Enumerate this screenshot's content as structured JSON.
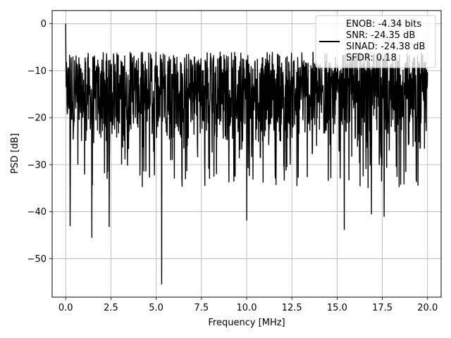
{
  "chart_data": {
    "type": "line",
    "xlabel": "Frequency [MHz]",
    "ylabel": "PSD [dB]",
    "xlim": [
      -0.75,
      20.75
    ],
    "ylim": [
      -58.2,
      2.8
    ],
    "xticks": [
      0.0,
      2.5,
      5.0,
      7.5,
      10.0,
      12.5,
      15.0,
      17.5,
      20.0
    ],
    "xtick_labels": [
      "0.0",
      "2.5",
      "5.0",
      "7.5",
      "10.0",
      "12.5",
      "15.0",
      "17.5",
      "20.0"
    ],
    "yticks": [
      0,
      -10,
      -20,
      -30,
      -40,
      -50
    ],
    "ytick_labels": [
      "0",
      "−10",
      "−20",
      "−30",
      "−40",
      "−50"
    ],
    "grid": true,
    "legend_position": "top-right",
    "series": [
      {
        "color": "#000000",
        "x_range": [
          0.0,
          20.0
        ],
        "typical_band_db": [
          -25,
          -6
        ],
        "peak": {
          "x": 0.0,
          "y": 0.0
        },
        "notable_dips": [
          {
            "x": 0.25,
            "y": -43.0
          },
          {
            "x": 1.45,
            "y": -45.5
          },
          {
            "x": 2.4,
            "y": -43.2
          },
          {
            "x": 5.3,
            "y": -55.4
          },
          {
            "x": 10.0,
            "y": -41.8
          },
          {
            "x": 15.4,
            "y": -43.8
          },
          {
            "x": 16.9,
            "y": -40.5
          },
          {
            "x": 17.6,
            "y": -41.0
          }
        ]
      }
    ],
    "legend": {
      "entries": [
        "ENOB: -4.34 bits",
        "SNR: -24.35 dB",
        "SINAD: -24.38 dB",
        "SFDR: 0.18"
      ]
    }
  }
}
